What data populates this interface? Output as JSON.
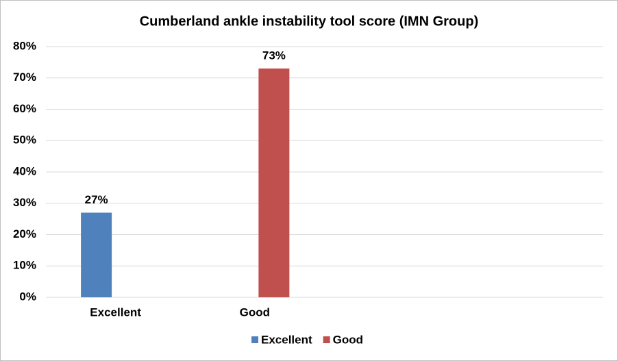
{
  "chart_data": {
    "type": "bar",
    "title": "Cumberland ankle instability tool score (IMN Group)",
    "categories": [
      "Excellent",
      "Good",
      null,
      null
    ],
    "series": [
      {
        "name": "Excellent",
        "color": "#4f81bd",
        "values": [
          27,
          null,
          null,
          null
        ],
        "value_labels": [
          "27%",
          null,
          null,
          null
        ]
      },
      {
        "name": "Good",
        "color": "#c0504d",
        "values": [
          null,
          73,
          null,
          null
        ],
        "value_labels": [
          null,
          "73%",
          null,
          null
        ]
      }
    ],
    "ylim": [
      0,
      80
    ],
    "yticks": [
      {
        "value": 0,
        "label": "0%"
      },
      {
        "value": 10,
        "label": "10%"
      },
      {
        "value": 20,
        "label": "20%"
      },
      {
        "value": 30,
        "label": "30%"
      },
      {
        "value": 40,
        "label": "40%"
      },
      {
        "value": 50,
        "label": "50%"
      },
      {
        "value": 60,
        "label": "60%"
      },
      {
        "value": 70,
        "label": "70%"
      },
      {
        "value": 80,
        "label": "80%"
      }
    ],
    "grid": true,
    "legend": "bottom"
  }
}
